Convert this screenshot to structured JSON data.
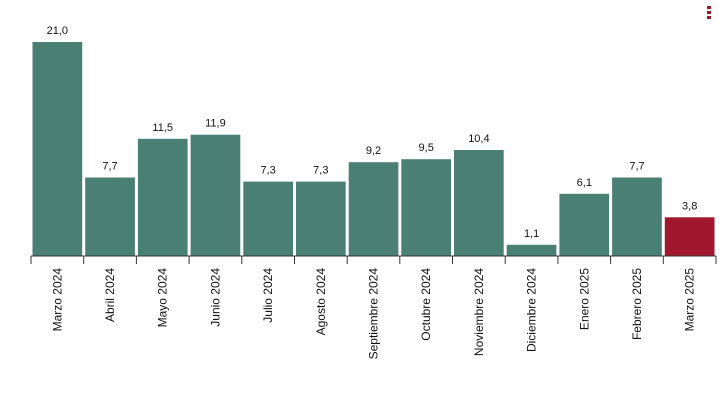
{
  "chart_data": {
    "type": "bar",
    "title": "",
    "xlabel": "",
    "ylabel": "",
    "ylim": [
      0,
      21.0
    ],
    "grid": false,
    "legend": "none",
    "categories": [
      "Marzo 2024",
      "Abril 2024",
      "Mayo 2024",
      "Junio 2024",
      "Julio 2024",
      "Agosto 2024",
      "Septiembre 2024",
      "Octubre 2024",
      "Noviembre 2024",
      "Diciembre 2024",
      "Enero 2025",
      "Febrero 2025",
      "Marzo 2025"
    ],
    "values": [
      21.0,
      7.7,
      11.5,
      11.9,
      7.3,
      7.3,
      9.2,
      9.5,
      10.4,
      1.1,
      6.1,
      7.7,
      3.8
    ],
    "value_labels": [
      "21,0",
      "7,7",
      "11,5",
      "11,9",
      "7,3",
      "7,3",
      "9,2",
      "9,5",
      "10,4",
      "1,1",
      "6,1",
      "7,7",
      "3,8"
    ],
    "highlight_index": 12,
    "colors": {
      "bar": "#4a7f74",
      "highlight": "#a0182e",
      "axis": "#333333",
      "label": "#111111"
    }
  },
  "menu": {
    "icon": "kebab-menu-icon"
  }
}
